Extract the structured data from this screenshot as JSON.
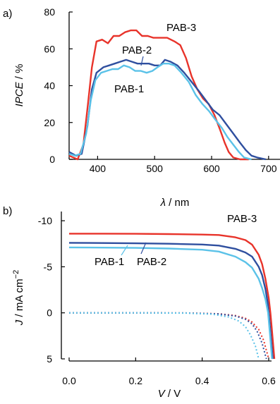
{
  "chart_data": [
    {
      "panel_label": "a)",
      "type": "line",
      "xlabel_symbol": "λ",
      "xlabel_unit": " / nm",
      "ylabel_symbol": "IPCE",
      "ylabel_unit": " / %",
      "xlim": [
        350,
        720
      ],
      "ylim": [
        0,
        80
      ],
      "xticks": [
        "400",
        "500",
        "600",
        "700"
      ],
      "yticks": [
        "0",
        "20",
        "40",
        "60",
        "80"
      ],
      "series": [
        {
          "name": "PAB-3",
          "color": "#e8332a",
          "points": [
            [
              350,
              2
            ],
            [
              365,
              0
            ],
            [
              375,
              8
            ],
            [
              383,
              30
            ],
            [
              390,
              50
            ],
            [
              398,
              64
            ],
            [
              408,
              65
            ],
            [
              418,
              63
            ],
            [
              428,
              67
            ],
            [
              438,
              67
            ],
            [
              448,
              69
            ],
            [
              458,
              70
            ],
            [
              468,
              70
            ],
            [
              478,
              67
            ],
            [
              488,
              67
            ],
            [
              498,
              66
            ],
            [
              510,
              66
            ],
            [
              522,
              66
            ],
            [
              535,
              64
            ],
            [
              545,
              62
            ],
            [
              555,
              55
            ],
            [
              565,
              45
            ],
            [
              575,
              38
            ],
            [
              585,
              33
            ],
            [
              595,
              30
            ],
            [
              605,
              24
            ],
            [
              615,
              16
            ],
            [
              623,
              9
            ],
            [
              630,
              4
            ],
            [
              638,
              1
            ],
            [
              650,
              0
            ],
            [
              665,
              0
            ]
          ]
        },
        {
          "name": "PAB-2",
          "color": "#2f4f9f",
          "points": [
            [
              350,
              4
            ],
            [
              362,
              2
            ],
            [
              372,
              3
            ],
            [
              382,
              18
            ],
            [
              390,
              38
            ],
            [
              398,
              47
            ],
            [
              410,
              50
            ],
            [
              420,
              51
            ],
            [
              430,
              52
            ],
            [
              440,
              53
            ],
            [
              450,
              54
            ],
            [
              460,
              53
            ],
            [
              470,
              52
            ],
            [
              480,
              52
            ],
            [
              490,
              52
            ],
            [
              500,
              51
            ],
            [
              510,
              51
            ],
            [
              518,
              54
            ],
            [
              528,
              53
            ],
            [
              540,
              51
            ],
            [
              552,
              47
            ],
            [
              565,
              42
            ],
            [
              578,
              37
            ],
            [
              590,
              32
            ],
            [
              602,
              27
            ],
            [
              614,
              24
            ],
            [
              626,
              19
            ],
            [
              638,
              14
            ],
            [
              650,
              9
            ],
            [
              660,
              5
            ],
            [
              670,
              2
            ],
            [
              680,
              1
            ],
            [
              695,
              0
            ]
          ]
        },
        {
          "name": "PAB-1",
          "color": "#5bc2e8",
          "points": [
            [
              350,
              3
            ],
            [
              360,
              2
            ],
            [
              370,
              3
            ],
            [
              380,
              14
            ],
            [
              388,
              32
            ],
            [
              396,
              43
            ],
            [
              406,
              47
            ],
            [
              416,
              48
            ],
            [
              426,
              49
            ],
            [
              436,
              49
            ],
            [
              446,
              51
            ],
            [
              456,
              50
            ],
            [
              466,
              48
            ],
            [
              476,
              48
            ],
            [
              486,
              47
            ],
            [
              496,
              48
            ],
            [
              505,
              50
            ],
            [
              515,
              52
            ],
            [
              525,
              52
            ],
            [
              535,
              51
            ],
            [
              547,
              47
            ],
            [
              560,
              42
            ],
            [
              572,
              35
            ],
            [
              584,
              30
            ],
            [
              596,
              26
            ],
            [
              608,
              21
            ],
            [
              618,
              17
            ],
            [
              628,
              12
            ],
            [
              638,
              8
            ],
            [
              648,
              4
            ],
            [
              657,
              1
            ],
            [
              670,
              0
            ]
          ]
        }
      ],
      "annotations": [
        {
          "text": "PAB-3",
          "color": "#e8332a"
        },
        {
          "text": "PAB-2",
          "color": "#2f4f9f"
        },
        {
          "text": "PAB-1",
          "color": "#5bc2e8"
        }
      ]
    },
    {
      "panel_label": "b)",
      "type": "line",
      "xlabel_symbol": "V",
      "xlabel_unit": " / V",
      "ylabel_symbol": "J",
      "ylabel_unit": " / mA cm",
      "ylabel_sup": "−2",
      "xlim": [
        -0.03,
        0.65
      ],
      "ylim": [
        -11,
        5
      ],
      "ylim_inverted": true,
      "xticks": [
        "0.0",
        "0.2",
        "0.4",
        "0.6"
      ],
      "yticks": [
        "-10",
        "-5",
        "0",
        "5"
      ],
      "series": [
        {
          "name": "PAB-3",
          "color": "#e8332a",
          "style": "solid",
          "points": [
            [
              0,
              -8.6
            ],
            [
              0.1,
              -8.6
            ],
            [
              0.2,
              -8.58
            ],
            [
              0.3,
              -8.55
            ],
            [
              0.4,
              -8.5
            ],
            [
              0.45,
              -8.45
            ],
            [
              0.5,
              -8.2
            ],
            [
              0.53,
              -7.9
            ],
            [
              0.55,
              -7.4
            ],
            [
              0.57,
              -6.3
            ],
            [
              0.58,
              -5.3
            ],
            [
              0.59,
              -3.7
            ],
            [
              0.6,
              -1.6
            ],
            [
              0.605,
              0
            ],
            [
              0.61,
              2
            ],
            [
              0.617,
              5
            ]
          ]
        },
        {
          "name": "PAB-2",
          "color": "#2f4f9f",
          "style": "solid",
          "points": [
            [
              0,
              -7.6
            ],
            [
              0.1,
              -7.58
            ],
            [
              0.2,
              -7.55
            ],
            [
              0.3,
              -7.5
            ],
            [
              0.4,
              -7.42
            ],
            [
              0.45,
              -7.3
            ],
            [
              0.5,
              -6.95
            ],
            [
              0.53,
              -6.55
            ],
            [
              0.55,
              -6.1
            ],
            [
              0.57,
              -5.0
            ],
            [
              0.58,
              -4.1
            ],
            [
              0.59,
              -2.6
            ],
            [
              0.597,
              -1.1
            ],
            [
              0.6,
              0
            ],
            [
              0.605,
              2
            ],
            [
              0.612,
              5
            ]
          ]
        },
        {
          "name": "PAB-1",
          "color": "#5bc2e8",
          "style": "solid",
          "points": [
            [
              0,
              -7.1
            ],
            [
              0.1,
              -7.08
            ],
            [
              0.2,
              -7.05
            ],
            [
              0.3,
              -6.98
            ],
            [
              0.4,
              -6.85
            ],
            [
              0.45,
              -6.65
            ],
            [
              0.5,
              -6.1
            ],
            [
              0.53,
              -5.5
            ],
            [
              0.55,
              -4.9
            ],
            [
              0.57,
              -3.7
            ],
            [
              0.58,
              -2.7
            ],
            [
              0.59,
              -1.5
            ],
            [
              0.598,
              0
            ],
            [
              0.603,
              2
            ],
            [
              0.61,
              5
            ]
          ]
        },
        {
          "name": "PAB-3",
          "color": "#e8332a",
          "style": "dotted",
          "points": [
            [
              0,
              0
            ],
            [
              0.2,
              0
            ],
            [
              0.35,
              0.02
            ],
            [
              0.45,
              0.1
            ],
            [
              0.5,
              0.3
            ],
            [
              0.53,
              0.6
            ],
            [
              0.55,
              1.0
            ],
            [
              0.57,
              1.8
            ],
            [
              0.585,
              3.0
            ],
            [
              0.6,
              5
            ]
          ]
        },
        {
          "name": "PAB-2",
          "color": "#2f4f9f",
          "style": "dotted",
          "points": [
            [
              0,
              0
            ],
            [
              0.2,
              0
            ],
            [
              0.35,
              0.02
            ],
            [
              0.45,
              0.12
            ],
            [
              0.5,
              0.35
            ],
            [
              0.53,
              0.7
            ],
            [
              0.55,
              1.2
            ],
            [
              0.565,
              2.0
            ],
            [
              0.58,
              3.3
            ],
            [
              0.593,
              5
            ]
          ]
        },
        {
          "name": "PAB-1",
          "color": "#5bc2e8",
          "style": "dotted",
          "points": [
            [
              0,
              0
            ],
            [
              0.2,
              0
            ],
            [
              0.35,
              0.03
            ],
            [
              0.43,
              0.15
            ],
            [
              0.48,
              0.45
            ],
            [
              0.51,
              0.9
            ],
            [
              0.53,
              1.5
            ],
            [
              0.545,
              2.4
            ],
            [
              0.56,
              3.6
            ],
            [
              0.57,
              5
            ]
          ]
        }
      ],
      "annotations": [
        {
          "text": "PAB-3",
          "color": "#e8332a"
        },
        {
          "text": "PAB-2",
          "color": "#2f4f9f"
        },
        {
          "text": "PAB-1",
          "color": "#5bc2e8"
        }
      ]
    }
  ]
}
